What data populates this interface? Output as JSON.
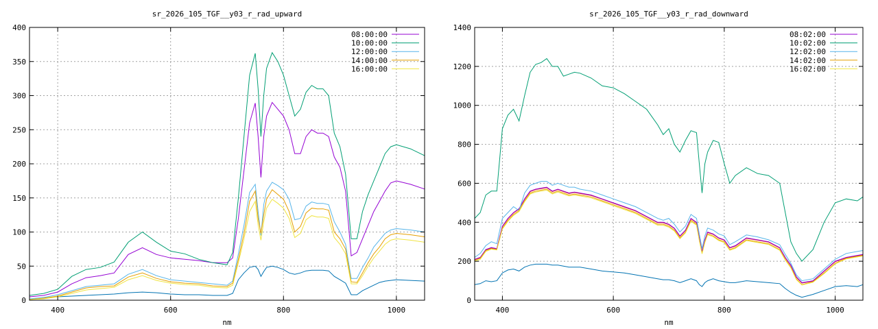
{
  "chart_data": [
    {
      "type": "line",
      "title": "sr_2026_105_TGF__y03_r_rad_upward",
      "xlabel": "nm",
      "ylabel": "",
      "xlim": [
        350,
        1050
      ],
      "ylim": [
        0,
        400
      ],
      "xticks": [
        400,
        600,
        800,
        1000
      ],
      "yticks": [
        0,
        50,
        100,
        150,
        200,
        250,
        300,
        350,
        400
      ],
      "grid": true,
      "legend": "top-right",
      "x": [
        350,
        375,
        400,
        425,
        450,
        475,
        500,
        525,
        550,
        575,
        600,
        625,
        650,
        675,
        700,
        710,
        720,
        730,
        740,
        750,
        755,
        760,
        765,
        770,
        780,
        790,
        800,
        810,
        820,
        830,
        840,
        850,
        860,
        870,
        880,
        890,
        900,
        910,
        920,
        930,
        940,
        950,
        960,
        970,
        980,
        990,
        1000,
        1025,
        1050
      ],
      "series": [
        {
          "name": "08:00:00",
          "color": "#9400d3",
          "values": [
            5,
            7,
            12,
            24,
            33,
            36,
            40,
            67,
            77,
            67,
            62,
            60,
            58,
            55,
            55,
            62,
            120,
            190,
            260,
            289,
            240,
            180,
            240,
            270,
            290,
            280,
            270,
            250,
            215,
            215,
            240,
            250,
            245,
            245,
            240,
            210,
            195,
            160,
            65,
            70,
            90,
            110,
            130,
            145,
            160,
            172,
            175,
            170,
            163
          ]
        },
        {
          "name": "10:00:00",
          "color": "#009e73",
          "values": [
            7,
            10,
            16,
            35,
            45,
            48,
            56,
            85,
            100,
            85,
            72,
            68,
            60,
            55,
            52,
            70,
            150,
            240,
            330,
            362,
            310,
            240,
            300,
            340,
            363,
            350,
            330,
            300,
            270,
            280,
            305,
            315,
            310,
            310,
            300,
            245,
            225,
            185,
            90,
            90,
            130,
            155,
            175,
            195,
            215,
            225,
            228,
            222,
            212
          ]
        },
        {
          "name": "12:00:00",
          "color": "#56b4e9",
          "values": [
            2,
            4,
            8,
            14,
            20,
            22,
            24,
            38,
            45,
            36,
            30,
            28,
            26,
            24,
            22,
            28,
            68,
            110,
            158,
            170,
            130,
            95,
            140,
            160,
            173,
            168,
            162,
            148,
            118,
            120,
            138,
            144,
            142,
            142,
            140,
            115,
            100,
            82,
            32,
            32,
            48,
            62,
            78,
            88,
            98,
            103,
            105,
            103,
            100
          ]
        },
        {
          "name": "14:00:00",
          "color": "#e69f00",
          "values": [
            1,
            3,
            6,
            12,
            18,
            20,
            21,
            34,
            40,
            32,
            27,
            25,
            24,
            21,
            20,
            25,
            60,
            98,
            145,
            160,
            120,
            98,
            125,
            148,
            162,
            155,
            148,
            130,
            100,
            108,
            128,
            135,
            134,
            134,
            132,
            100,
            90,
            75,
            27,
            26,
            40,
            55,
            68,
            78,
            90,
            96,
            98,
            96,
            93
          ]
        },
        {
          "name": "16:00:00",
          "color": "#f0e442",
          "values": [
            1,
            2,
            5,
            10,
            15,
            17,
            19,
            30,
            36,
            29,
            25,
            23,
            22,
            19,
            18,
            22,
            55,
            90,
            130,
            145,
            110,
            88,
            115,
            135,
            148,
            142,
            135,
            120,
            92,
            98,
            118,
            124,
            122,
            122,
            120,
            92,
            82,
            68,
            24,
            24,
            36,
            50,
            62,
            72,
            82,
            88,
            90,
            88,
            85
          ]
        }
      ],
      "extra_series": [
        {
          "color": "#0072b2",
          "values": [
            1,
            3,
            5,
            6,
            7,
            8,
            9,
            11,
            12,
            11,
            9,
            8,
            8,
            7,
            7,
            10,
            30,
            40,
            48,
            50,
            45,
            35,
            42,
            48,
            50,
            48,
            45,
            40,
            38,
            40,
            43,
            44,
            44,
            44,
            43,
            35,
            30,
            25,
            8,
            8,
            14,
            18,
            22,
            26,
            28,
            29,
            30,
            29,
            28
          ]
        }
      ]
    },
    {
      "type": "line",
      "title": "sr_2026_105_TGF__y03_r_rad_downward",
      "xlabel": "nm",
      "ylabel": "",
      "xlim": [
        350,
        1050
      ],
      "ylim": [
        0,
        1400
      ],
      "xticks": [
        400,
        600,
        800,
        1000
      ],
      "yticks": [
        0,
        200,
        400,
        600,
        800,
        1000,
        1200,
        1400
      ],
      "grid": true,
      "legend": "top-right",
      "x": [
        350,
        360,
        370,
        380,
        390,
        400,
        410,
        420,
        430,
        440,
        450,
        460,
        470,
        480,
        490,
        500,
        510,
        520,
        530,
        540,
        560,
        580,
        600,
        620,
        640,
        660,
        680,
        690,
        700,
        710,
        720,
        730,
        740,
        750,
        755,
        760,
        765,
        770,
        780,
        790,
        800,
        810,
        820,
        840,
        860,
        880,
        900,
        910,
        920,
        930,
        940,
        960,
        980,
        1000,
        1020,
        1040,
        1050
      ],
      "series": [
        {
          "name": "08:02:00",
          "color": "#9400d3",
          "values": [
            210,
            220,
            260,
            270,
            265,
            380,
            420,
            450,
            470,
            520,
            560,
            570,
            575,
            580,
            560,
            570,
            560,
            550,
            555,
            550,
            540,
            520,
            500,
            480,
            460,
            430,
            400,
            400,
            390,
            370,
            330,
            360,
            420,
            400,
            320,
            250,
            310,
            350,
            340,
            320,
            310,
            270,
            280,
            320,
            310,
            300,
            270,
            220,
            180,
            120,
            90,
            100,
            150,
            200,
            220,
            230,
            235
          ]
        },
        {
          "name": "10:02:00",
          "color": "#009e73",
          "values": [
            420,
            450,
            540,
            560,
            560,
            880,
            950,
            980,
            920,
            1050,
            1170,
            1210,
            1220,
            1240,
            1200,
            1200,
            1150,
            1160,
            1170,
            1165,
            1140,
            1100,
            1090,
            1060,
            1020,
            980,
            900,
            850,
            880,
            800,
            760,
            820,
            870,
            860,
            700,
            550,
            700,
            760,
            820,
            810,
            700,
            600,
            640,
            680,
            650,
            640,
            600,
            450,
            300,
            240,
            200,
            260,
            400,
            500,
            520,
            510,
            530
          ]
        },
        {
          "name": "12:02:00",
          "color": "#56b4e9",
          "values": [
            220,
            240,
            280,
            300,
            290,
            420,
            450,
            480,
            460,
            550,
            590,
            600,
            610,
            610,
            590,
            600,
            590,
            580,
            580,
            570,
            560,
            540,
            520,
            500,
            480,
            450,
            420,
            410,
            420,
            390,
            350,
            380,
            440,
            420,
            340,
            265,
            330,
            370,
            360,
            340,
            330,
            285,
            300,
            335,
            325,
            310,
            285,
            235,
            190,
            130,
            100,
            110,
            160,
            210,
            240,
            250,
            255
          ]
        },
        {
          "name": "14:02:00",
          "color": "#e69f00",
          "values": [
            205,
            215,
            255,
            265,
            260,
            370,
            410,
            440,
            460,
            510,
            550,
            560,
            565,
            570,
            550,
            560,
            550,
            540,
            545,
            540,
            530,
            510,
            490,
            470,
            450,
            420,
            390,
            390,
            380,
            360,
            320,
            350,
            410,
            390,
            310,
            240,
            300,
            340,
            330,
            310,
            300,
            260,
            270,
            310,
            300,
            290,
            260,
            210,
            170,
            110,
            80,
            95,
            140,
            190,
            215,
            225,
            230
          ]
        },
        {
          "name": "16:02:00",
          "color": "#f0e442",
          "values": [
            200,
            210,
            250,
            262,
            258,
            365,
            405,
            435,
            455,
            505,
            545,
            555,
            560,
            565,
            545,
            555,
            545,
            535,
            540,
            535,
            525,
            505,
            485,
            465,
            445,
            415,
            385,
            385,
            375,
            355,
            315,
            345,
            405,
            385,
            305,
            238,
            296,
            336,
            326,
            306,
            296,
            256,
            266,
            306,
            296,
            286,
            256,
            206,
            166,
            106,
            78,
            92,
            136,
            186,
            212,
            222,
            227
          ]
        }
      ],
      "extra_series": [
        {
          "color": "#e41a1c",
          "values": [
            208,
            218,
            258,
            268,
            263,
            378,
            418,
            448,
            468,
            518,
            558,
            568,
            573,
            578,
            558,
            568,
            558,
            548,
            553,
            548,
            538,
            518,
            498,
            478,
            458,
            428,
            398,
            398,
            388,
            368,
            328,
            358,
            418,
            398,
            318,
            248,
            308,
            348,
            338,
            318,
            308,
            268,
            278,
            318,
            308,
            298,
            268,
            218,
            178,
            118,
            88,
            98,
            148,
            198,
            218,
            228,
            233
          ]
        },
        {
          "color": "#0072b2",
          "values": [
            80,
            85,
            100,
            95,
            100,
            140,
            155,
            160,
            150,
            170,
            180,
            185,
            185,
            185,
            180,
            180,
            175,
            170,
            170,
            170,
            160,
            150,
            145,
            140,
            130,
            120,
            110,
            105,
            105,
            100,
            90,
            100,
            110,
            100,
            80,
            70,
            90,
            100,
            110,
            100,
            95,
            90,
            90,
            100,
            95,
            90,
            85,
            60,
            40,
            25,
            15,
            30,
            50,
            70,
            75,
            70,
            80
          ]
        }
      ]
    }
  ]
}
